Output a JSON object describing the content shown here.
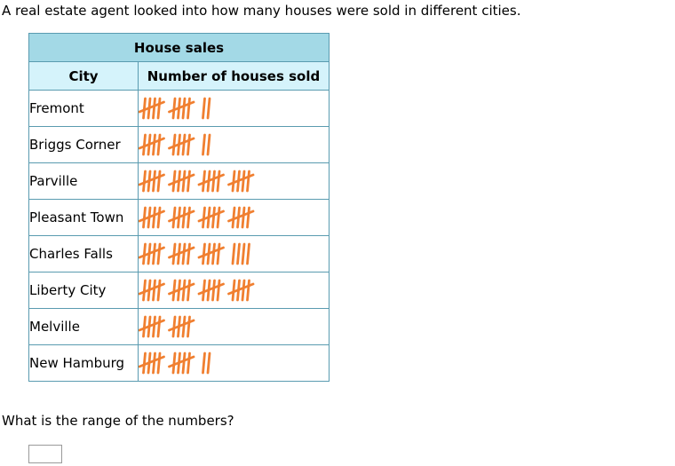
{
  "intro": "A real estate agent looked into how many houses were sold in different cities.",
  "table": {
    "title": "House sales",
    "headers": [
      "City",
      "Number of houses sold"
    ],
    "tally_color": "#f07f30",
    "rows": [
      {
        "city": "Fremont",
        "count": 12
      },
      {
        "city": "Briggs Corner",
        "count": 12
      },
      {
        "city": "Parville",
        "count": 20
      },
      {
        "city": "Pleasant Town",
        "count": 20
      },
      {
        "city": "Charles Falls",
        "count": 19
      },
      {
        "city": "Liberty City",
        "count": 20
      },
      {
        "city": "Melville",
        "count": 10
      },
      {
        "city": "New Hamburg",
        "count": 12
      }
    ]
  },
  "question": "What is the range of the numbers?",
  "answer": {
    "value": ""
  }
}
